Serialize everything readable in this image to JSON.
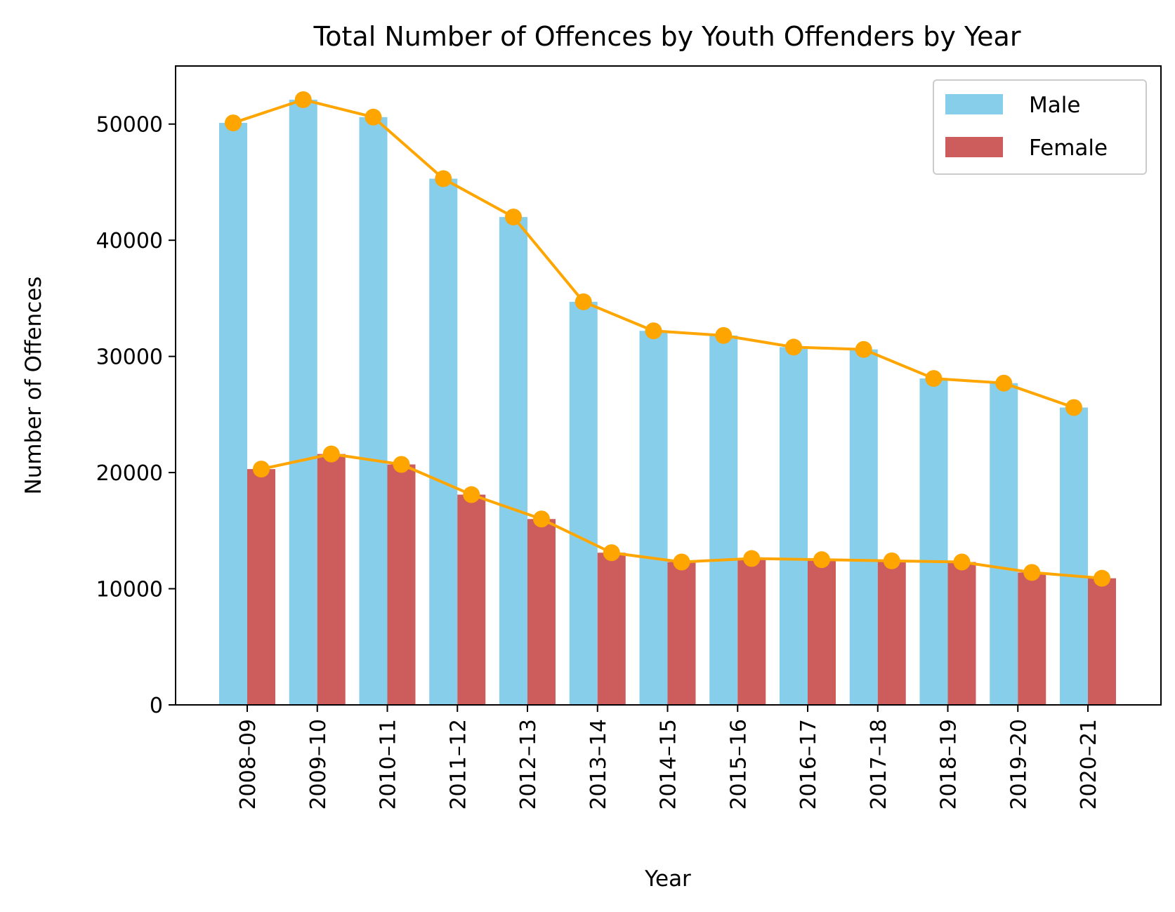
{
  "chart_data": {
    "type": "bar",
    "title": "Total Number of Offences by Youth Offenders by Year",
    "xlabel": "Year",
    "ylabel": "Number of Offences",
    "categories": [
      "2008–09",
      "2009–10",
      "2010–11",
      "2011–12",
      "2012–13",
      "2013–14",
      "2014–15",
      "2015–16",
      "2016–17",
      "2017–18",
      "2018–19",
      "2019–20",
      "2020–21"
    ],
    "series": [
      {
        "name": "Male",
        "color": "#87CEEB",
        "values": [
          50100,
          52100,
          50600,
          45300,
          42000,
          34700,
          32200,
          31800,
          30800,
          30600,
          28100,
          27700,
          25600
        ]
      },
      {
        "name": "Female",
        "color": "#CD5C5C",
        "values": [
          20300,
          21600,
          20700,
          18100,
          16000,
          13100,
          12300,
          12600,
          12500,
          12400,
          12300,
          11400,
          10900
        ]
      }
    ],
    "overlay_lines": {
      "color": "#FFA500",
      "marker": "circle",
      "follows_series": [
        "Male",
        "Female"
      ]
    },
    "ylim": [
      0,
      55000
    ],
    "yticks": [
      0,
      10000,
      20000,
      30000,
      40000,
      50000
    ],
    "grid": false,
    "legend": "top-right"
  }
}
